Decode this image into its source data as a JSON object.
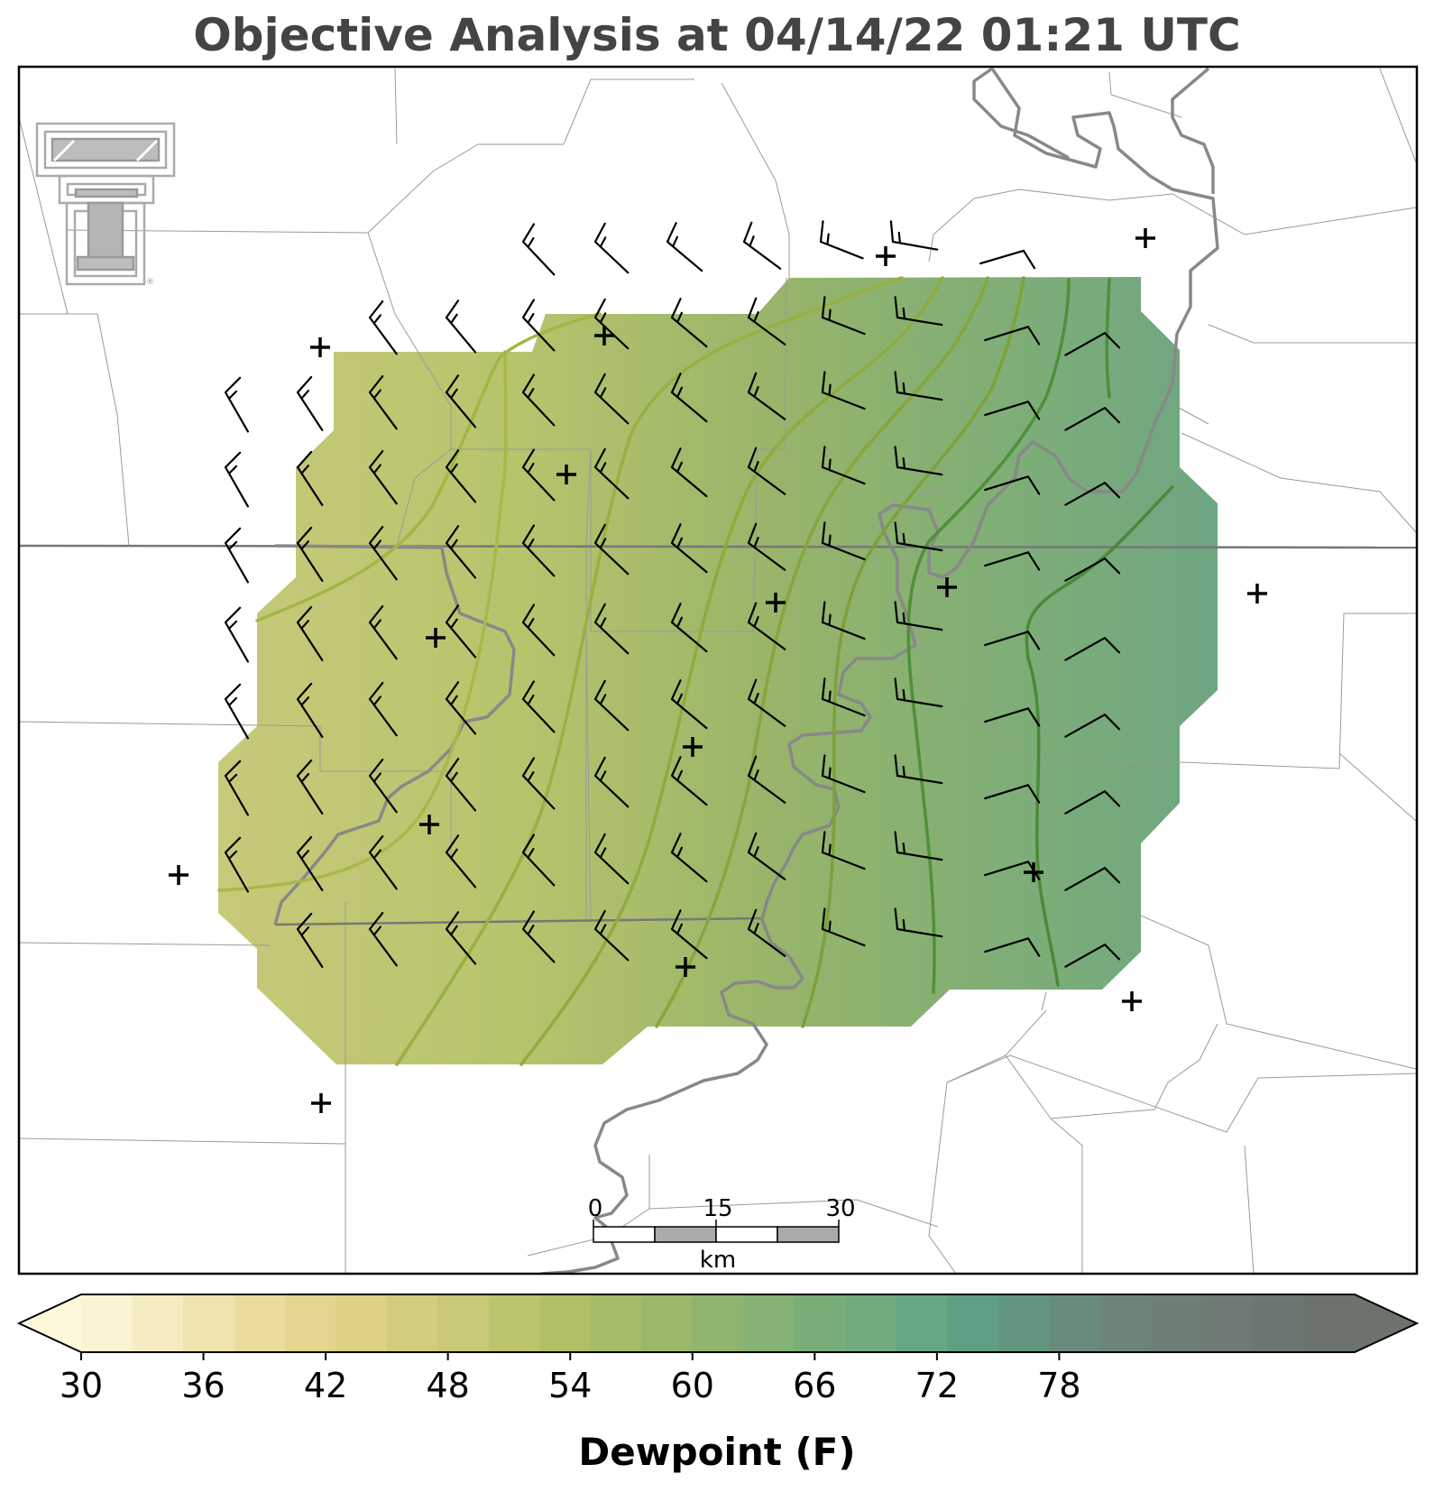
{
  "title": "Objective Analysis at 04/14/22 01:21 UTC",
  "scale_bar": {
    "ticks": [
      "0",
      "15",
      "30"
    ],
    "unit": "km"
  },
  "colorbar": {
    "label": "Dewpoint (F)",
    "min": 30,
    "max": 80,
    "step": 2.5,
    "tick_labels": [
      "30",
      "36",
      "42",
      "48",
      "54",
      "60",
      "66",
      "72",
      "78"
    ],
    "colors": [
      "#fdf8dc",
      "#faf4d2",
      "#f5ecc2",
      "#efe3b0",
      "#e9dc9e",
      "#e3d58f",
      "#dcd185",
      "#d2cd7c",
      "#c8c876",
      "#bcc46e",
      "#b1c066",
      "#a6bb66",
      "#9bb86a",
      "#90b46f",
      "#84b174",
      "#79ae79",
      "#6fab7f",
      "#66a783",
      "#5f9f83",
      "#62967f",
      "#688c7b",
      "#6c8578",
      "#6e7f75",
      "#6e7a73",
      "#6d7771",
      "#6b736c"
    ]
  },
  "chart_data": {
    "type": "heatmap",
    "variable": "Dewpoint",
    "units": "F",
    "field_range": [
      47,
      66
    ],
    "contours_F": [
      48,
      50,
      52,
      54,
      56,
      58,
      60,
      62,
      64
    ],
    "wind_barbs": "10-15 kt from the west-northwest over the western half, shifting to south-southwest in the east",
    "colorbar_ticks": [
      30,
      36,
      42,
      48,
      54,
      60,
      66,
      72,
      78
    ]
  }
}
